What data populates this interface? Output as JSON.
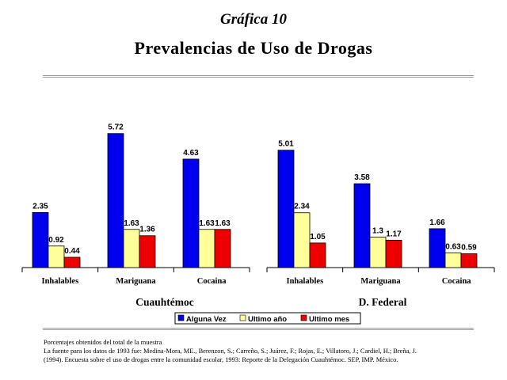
{
  "header": {
    "supertitle": "Gráfica 10",
    "title": "Prevalencias de Uso de Drogas"
  },
  "colors": {
    "alguna_vez": "#0000ee",
    "ultimo_ano": "#ffff99",
    "ultimo_mes": "#ee0000"
  },
  "chart_data": [
    {
      "type": "bar",
      "title": "Cuauhtémoc",
      "categories": [
        "Inhalables",
        "Mariguana",
        "Cocaina"
      ],
      "series": [
        {
          "name": "Alguna Vez",
          "values": [
            2.35,
            5.72,
            4.63
          ]
        },
        {
          "name": "Ultimo año",
          "values": [
            0.92,
            1.63,
            1.63
          ]
        },
        {
          "name": "Ultimo mes",
          "values": [
            0.44,
            1.36,
            1.63
          ]
        }
      ],
      "value_labels": [
        [
          "2.35",
          "5.72",
          "4.63"
        ],
        [
          "0.92",
          "1.63",
          "1.63"
        ],
        [
          "0.44",
          "1.36",
          "1.63"
        ]
      ],
      "ylim": [
        0,
        6
      ],
      "grid": false,
      "legend": "bottom-center"
    },
    {
      "type": "bar",
      "title": "D. Federal",
      "categories": [
        "Inhalables",
        "Mariguana",
        "Cocaina"
      ],
      "series": [
        {
          "name": "Alguna Vez",
          "values": [
            5.01,
            3.58,
            1.66
          ]
        },
        {
          "name": "Ultimo año",
          "values": [
            2.34,
            1.3,
            0.63
          ]
        },
        {
          "name": "Ultimo mes",
          "values": [
            1.05,
            1.17,
            0.59
          ]
        }
      ],
      "value_labels": [
        [
          "5.01",
          "3.58",
          "1.66"
        ],
        [
          "2.34",
          "1.3",
          "0.63"
        ],
        [
          "1.05",
          "1.17",
          "0.59"
        ]
      ],
      "ylim": [
        0,
        6
      ],
      "grid": false,
      "legend": "bottom-center"
    }
  ],
  "legend": [
    "Alguna Vez",
    "Ultimo año",
    "Ultimo mes"
  ],
  "footnotes": [
    "Porcentajes obtenidos del total de la muestra",
    "La fuente para los datos de 1993 fue: Medina-Mora, ME., Berenzon, S.; Carreño, S.; Juárez, F.; Rojas, E.; Villatoro, J.; Cardiel, H.; Breña, J.",
    "(1994). Encuesta sobre el uso de drogas entre la comunidad escolar, 1993: Reporte de la Delegación Cuauhtémoc. SEP, IMP. México."
  ]
}
